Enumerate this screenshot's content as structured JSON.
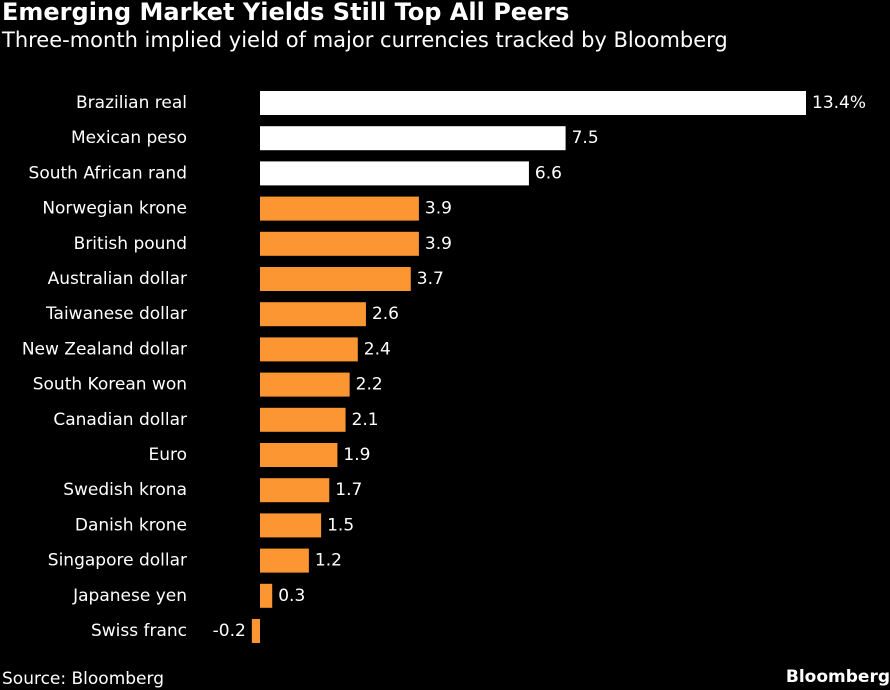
{
  "header": {
    "title": "Emerging Market Yields Still Top All Peers",
    "subtitle": "Three-month implied yield of major currencies tracked by Bloomberg"
  },
  "footer": {
    "source": "Source: Bloomberg",
    "brand": "Bloomberg"
  },
  "colors": {
    "background": "#000000",
    "emerging": "#ffffff",
    "developed": "#fc9633",
    "text": "#ffffff"
  },
  "chart_data": {
    "type": "bar",
    "orientation": "horizontal",
    "title": "Emerging Market Yields Still Top All Peers",
    "subtitle": "Three-month implied yield of major currencies tracked by Bloomberg",
    "categories": [
      "Brazilian real",
      "Mexican peso",
      "South African rand",
      "Norwegian krone",
      "British pound",
      "Australian dollar",
      "Taiwanese dollar",
      "New Zealand dollar",
      "South Korean won",
      "Canadian dollar",
      "Euro",
      "Swedish krona",
      "Danish krone",
      "Singapore dollar",
      "Japanese yen",
      "Swiss franc"
    ],
    "values": [
      13.4,
      7.5,
      6.6,
      3.9,
      3.9,
      3.7,
      2.6,
      2.4,
      2.2,
      2.1,
      1.9,
      1.7,
      1.5,
      1.2,
      0.3,
      -0.2
    ],
    "value_labels": [
      "13.4%",
      "7.5",
      "6.6",
      "3.9",
      "3.9",
      "3.7",
      "2.6",
      "2.4",
      "2.2",
      "2.1",
      "1.9",
      "1.7",
      "1.5",
      "1.2",
      "0.3",
      "-0.2"
    ],
    "highlight_count": 3,
    "unit": "%",
    "grid": false,
    "legend": "none"
  }
}
